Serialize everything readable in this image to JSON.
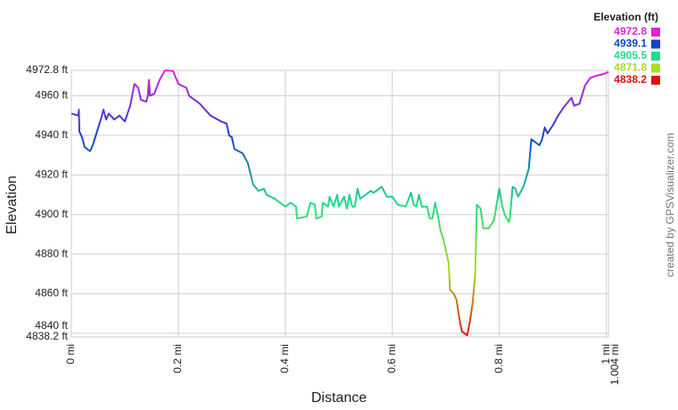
{
  "chart_data": {
    "type": "line",
    "x_label": "Distance",
    "y_label": "Elevation",
    "credit": "created by GPSVisualizer.com",
    "legend": {
      "title": "Elevation (ft)",
      "entries": [
        {
          "value": 4972.8,
          "color": "#dd22dd"
        },
        {
          "value": 4939.1,
          "color": "#1144cc"
        },
        {
          "value": 4905.5,
          "color": "#22dd88"
        },
        {
          "value": 4871.8,
          "color": "#aadd22"
        },
        {
          "value": 4838.2,
          "color": "#dd1111"
        }
      ]
    },
    "xlim": [
      0,
      1.004
    ],
    "ylim": [
      4838.2,
      4972.8
    ],
    "xticks": [
      {
        "value": 0,
        "label": "0 mi"
      },
      {
        "value": 0.2,
        "label": "0.2 mi"
      },
      {
        "value": 0.4,
        "label": "0.4 mi"
      },
      {
        "value": 0.6,
        "label": "0.6 mi"
      },
      {
        "value": 0.8,
        "label": "0.8 mi"
      },
      {
        "value": 1,
        "label": "1 mi"
      },
      {
        "value": 1.004,
        "label": "1.004 mi"
      }
    ],
    "yticks": [
      {
        "value": 4838.2,
        "label": "4838.2 ft"
      },
      {
        "value": 4840,
        "label": "4840 ft"
      },
      {
        "value": 4860,
        "label": "4860 ft"
      },
      {
        "value": 4880,
        "label": "4880 ft"
      },
      {
        "value": 4900,
        "label": "4900 ft"
      },
      {
        "value": 4920,
        "label": "4920 ft"
      },
      {
        "value": 4940,
        "label": "4940 ft"
      },
      {
        "value": 4960,
        "label": "4960 ft"
      },
      {
        "value": 4972.8,
        "label": "4972.8 ft"
      }
    ],
    "grid": true,
    "x": [
      0,
      0.013,
      0.014,
      0.015,
      0.02,
      0.025,
      0.035,
      0.04,
      0.055,
      0.06,
      0.065,
      0.07,
      0.08,
      0.09,
      0.1,
      0.11,
      0.118,
      0.125,
      0.13,
      0.14,
      0.143,
      0.145,
      0.147,
      0.155,
      0.165,
      0.175,
      0.19,
      0.2,
      0.215,
      0.22,
      0.24,
      0.26,
      0.28,
      0.29,
      0.295,
      0.3,
      0.305,
      0.32,
      0.33,
      0.34,
      0.35,
      0.36,
      0.365,
      0.38,
      0.4,
      0.41,
      0.42,
      0.422,
      0.44,
      0.447,
      0.455,
      0.458,
      0.468,
      0.47,
      0.48,
      0.483,
      0.49,
      0.497,
      0.5,
      0.51,
      0.515,
      0.52,
      0.525,
      0.53,
      0.535,
      0.54,
      0.55,
      0.56,
      0.565,
      0.58,
      0.59,
      0.6,
      0.61,
      0.625,
      0.635,
      0.64,
      0.645,
      0.65,
      0.655,
      0.665,
      0.67,
      0.675,
      0.68,
      0.685,
      0.69,
      0.695,
      0.7,
      0.705,
      0.708,
      0.715,
      0.72,
      0.725,
      0.73,
      0.74,
      0.745,
      0.75,
      0.755,
      0.758,
      0.765,
      0.77,
      0.78,
      0.79,
      0.8,
      0.805,
      0.81,
      0.818,
      0.82,
      0.825,
      0.83,
      0.835,
      0.845,
      0.855,
      0.86,
      0.87,
      0.875,
      0.88,
      0.885,
      0.89,
      0.9,
      0.91,
      0.92,
      0.935,
      0.94,
      0.95,
      0.96,
      0.97,
      0.98,
      0.995,
      1.004
    ],
    "values": [
      4951,
      4950,
      4953,
      4942,
      4939,
      4934,
      4932,
      4935,
      4948,
      4953,
      4948,
      4951,
      4948,
      4950,
      4947,
      4955,
      4966,
      4964,
      4958,
      4957,
      4960,
      4968,
      4960,
      4961,
      4968,
      4972.8,
      4972.5,
      4966,
      4964,
      4960,
      4956,
      4950,
      4947,
      4946,
      4940,
      4939,
      4933,
      4931,
      4926,
      4915,
      4912,
      4913,
      4910,
      4908,
      4904,
      4906,
      4904,
      4898,
      4899,
      4906,
      4905,
      4898,
      4899,
      4906,
      4904,
      4909,
      4904,
      4910,
      4904,
      4909,
      4903,
      4910,
      4904,
      4904,
      4913,
      4908,
      4910,
      4912,
      4911,
      4914,
      4909,
      4909,
      4905,
      4904,
      4911,
      4905,
      4904,
      4910,
      4904,
      4904,
      4898,
      4898,
      4906,
      4900,
      4892,
      4888,
      4882,
      4876,
      4862,
      4860,
      4857,
      4848,
      4841,
      4839,
      4846,
      4855,
      4870,
      4905,
      4903,
      4893,
      4893,
      4897,
      4913,
      4905,
      4900,
      4896,
      4899,
      4914,
      4913,
      4909,
      4914,
      4923,
      4938,
      4936,
      4935,
      4938,
      4944,
      4941,
      4945,
      4950,
      4954,
      4959,
      4955,
      4956,
      4965,
      4969,
      4970,
      4971,
      4972
    ]
  }
}
